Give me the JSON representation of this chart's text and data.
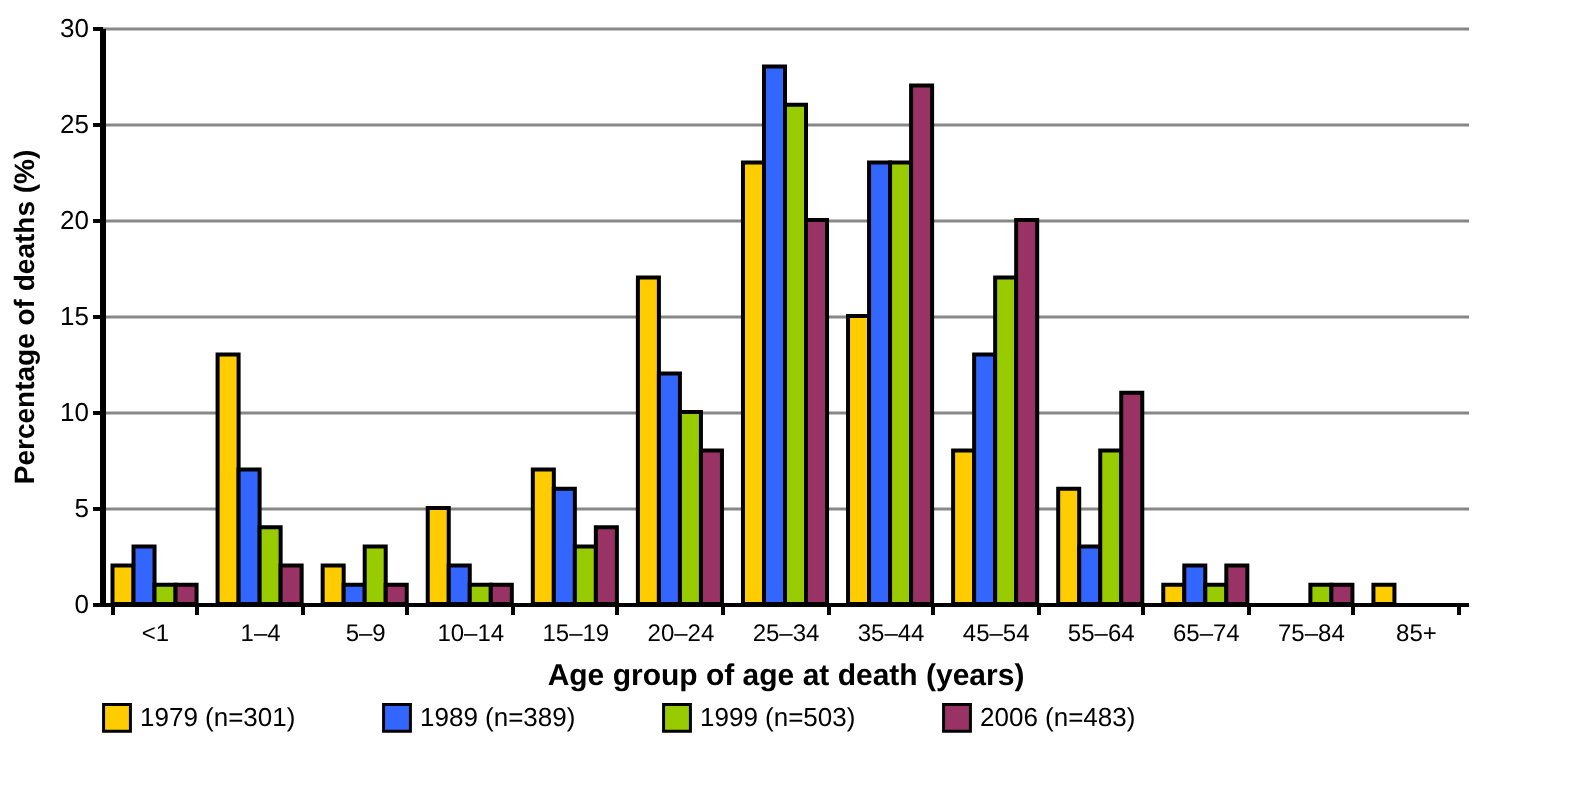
{
  "chart_data": {
    "type": "bar",
    "xlabel": "Age group of age at death (years)",
    "ylabel": "Percentage of deaths (%)",
    "categories": [
      "<1",
      "1–4",
      "5–9",
      "10–14",
      "15–19",
      "20–24",
      "25–34",
      "35–44",
      "45–54",
      "55–64",
      "65–74",
      "75–84",
      "85+"
    ],
    "series": [
      {
        "name": "1979 (n=301)",
        "color": "#ffcc00",
        "values": [
          2,
          13,
          2,
          5,
          7,
          17,
          23,
          15,
          8,
          6,
          1,
          null,
          1
        ]
      },
      {
        "name": "1989 (n=389)",
        "color": "#3366ff",
        "values": [
          3,
          7,
          1,
          2,
          6,
          12,
          28,
          23,
          13,
          3,
          2,
          null,
          null
        ]
      },
      {
        "name": "1999 (n=503)",
        "color": "#99cc00",
        "values": [
          1,
          4,
          3,
          1,
          3,
          10,
          26,
          23,
          17,
          8,
          1,
          1,
          null
        ]
      },
      {
        "name": "2006 (n=483)",
        "color": "#993366",
        "values": [
          1,
          2,
          1,
          1,
          4,
          8,
          20,
          27,
          20,
          11,
          2,
          1,
          null
        ]
      }
    ],
    "ylim": [
      0,
      30
    ],
    "yticks": [
      0,
      5,
      10,
      15,
      20,
      25,
      30
    ],
    "grid": "y",
    "legend": "bottom"
  }
}
